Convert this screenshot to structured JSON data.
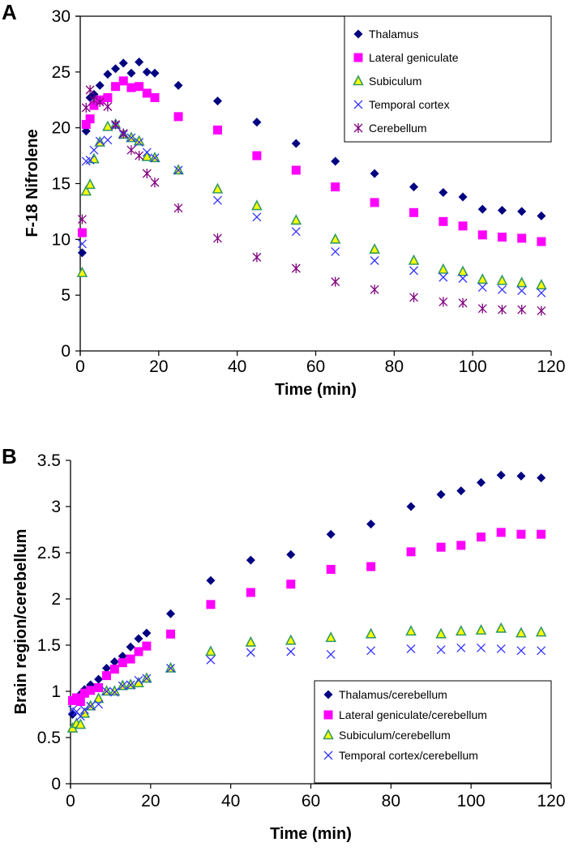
{
  "chart_data": [
    {
      "type": "scatter",
      "panel_label": "A",
      "xlabel": "Time (min)",
      "ylabel": "F-18 Nifrolene",
      "xlim": [
        0,
        120
      ],
      "ylim": [
        0,
        30
      ],
      "xticks": [
        0,
        20,
        40,
        60,
        80,
        100,
        120
      ],
      "yticks": [
        0,
        5,
        10,
        15,
        20,
        25,
        30
      ],
      "legend_position": "top-right",
      "x": [
        0.5,
        1.5,
        2.5,
        3.5,
        5,
        7,
        9,
        11,
        13,
        15,
        17,
        19,
        25,
        35,
        45,
        55,
        65,
        75,
        85,
        92.5,
        97.5,
        102.5,
        107.5,
        112.5,
        117.5
      ],
      "series": [
        {
          "name": "Thalamus",
          "marker": "diamond",
          "color": "#000080",
          "values": [
            8.8,
            19.7,
            22.7,
            23,
            23.8,
            24.8,
            25.3,
            25.8,
            24.9,
            25.9,
            25,
            24.9,
            23.8,
            22.4,
            20.5,
            18.6,
            17,
            15.9,
            14.7,
            14.2,
            13.8,
            12.7,
            12.6,
            12.5,
            12.1
          ]
        },
        {
          "name": "Lateral geniculate",
          "marker": "square",
          "color": "#FF00FF",
          "values": [
            10.6,
            20.3,
            20.8,
            22,
            22.5,
            22.7,
            23.7,
            24.2,
            23.6,
            23.7,
            23.1,
            22.7,
            21,
            19.8,
            17.5,
            16.2,
            14.7,
            13.3,
            12.4,
            11.6,
            11.2,
            10.4,
            10.2,
            10.1,
            9.8
          ]
        },
        {
          "name": "Subiculum",
          "marker": "triangle",
          "color": "#FFFF00",
          "values": [
            7,
            14.3,
            14.9,
            17.2,
            18.7,
            20.1,
            20.3,
            19.4,
            19.1,
            18.8,
            17.4,
            17.3,
            16.2,
            14.5,
            13,
            11.7,
            10,
            9.1,
            8.1,
            7.3,
            7.1,
            6.4,
            6.3,
            6.1,
            5.9
          ]
        },
        {
          "name": "Temporal cortex",
          "marker": "x",
          "color": "#3333FF",
          "values": [
            9.6,
            17,
            17.1,
            18,
            18.8,
            18.9,
            20.2,
            19.4,
            19.1,
            18.7,
            17.8,
            17.3,
            16.2,
            13.5,
            12,
            10.7,
            8.9,
            8.1,
            7.2,
            6.6,
            6.5,
            5.7,
            5.5,
            5.4,
            5.2
          ]
        },
        {
          "name": "Cerebellum",
          "marker": "asterisk",
          "color": "#800080",
          "values": [
            11.8,
            21.8,
            23.4,
            22.5,
            22.3,
            21.9,
            20.3,
            19.5,
            18,
            17.5,
            15.9,
            15.1,
            12.8,
            10.1,
            8.4,
            7.4,
            6.2,
            5.5,
            4.8,
            4.4,
            4.3,
            3.8,
            3.7,
            3.7,
            3.6
          ]
        }
      ]
    },
    {
      "type": "scatter",
      "panel_label": "B",
      "xlabel": "Time (min)",
      "ylabel": "Brain region/cerebellum",
      "xlim": [
        0,
        120
      ],
      "ylim": [
        0,
        3.5
      ],
      "xticks": [
        0,
        20,
        40,
        60,
        80,
        100,
        120
      ],
      "yticks": [
        0,
        0.5,
        1,
        1.5,
        2,
        2.5,
        3,
        3.5
      ],
      "legend_position": "bottom-right",
      "x": [
        0.5,
        1.5,
        2.5,
        3.5,
        5,
        7,
        9,
        11,
        13,
        15,
        17,
        19,
        25,
        35,
        45,
        55,
        65,
        75,
        85,
        92.5,
        97.5,
        102.5,
        107.5,
        112.5,
        117.5
      ],
      "series": [
        {
          "name": "Thalamus/cerebellum",
          "marker": "diamond",
          "color": "#000080",
          "values": [
            0.75,
            0.9,
            0.97,
            1.02,
            1.07,
            1.13,
            1.25,
            1.32,
            1.38,
            1.48,
            1.57,
            1.63,
            1.84,
            2.2,
            2.42,
            2.48,
            2.7,
            2.81,
            3,
            3.13,
            3.17,
            3.26,
            3.34,
            3.33,
            3.31
          ]
        },
        {
          "name": "Lateral geniculate/cerebellum",
          "marker": "square",
          "color": "#FF00FF",
          "values": [
            0.9,
            0.93,
            0.89,
            0.98,
            1.01,
            1.04,
            1.17,
            1.24,
            1.31,
            1.35,
            1.43,
            1.49,
            1.62,
            1.94,
            2.07,
            2.16,
            2.32,
            2.35,
            2.51,
            2.56,
            2.58,
            2.67,
            2.72,
            2.7,
            2.7
          ]
        },
        {
          "name": "Subiculum/cerebellum",
          "marker": "triangle",
          "color": "#FFFF00",
          "values": [
            0.6,
            0.65,
            0.64,
            0.76,
            0.84,
            0.92,
            1,
            1,
            1.06,
            1.07,
            1.09,
            1.14,
            1.25,
            1.43,
            1.53,
            1.55,
            1.58,
            1.62,
            1.65,
            1.62,
            1.65,
            1.66,
            1.68,
            1.63,
            1.64
          ]
        },
        {
          "name": "Temporal cortex/cerebellum",
          "marker": "x",
          "color": "#3333FF",
          "values": [
            0.8,
            0.78,
            0.73,
            0.8,
            0.84,
            0.86,
            1,
            0.99,
            1.06,
            1.07,
            1.12,
            1.14,
            1.25,
            1.34,
            1.42,
            1.43,
            1.4,
            1.44,
            1.46,
            1.45,
            1.47,
            1.47,
            1.46,
            1.44,
            1.44
          ]
        }
      ]
    }
  ]
}
